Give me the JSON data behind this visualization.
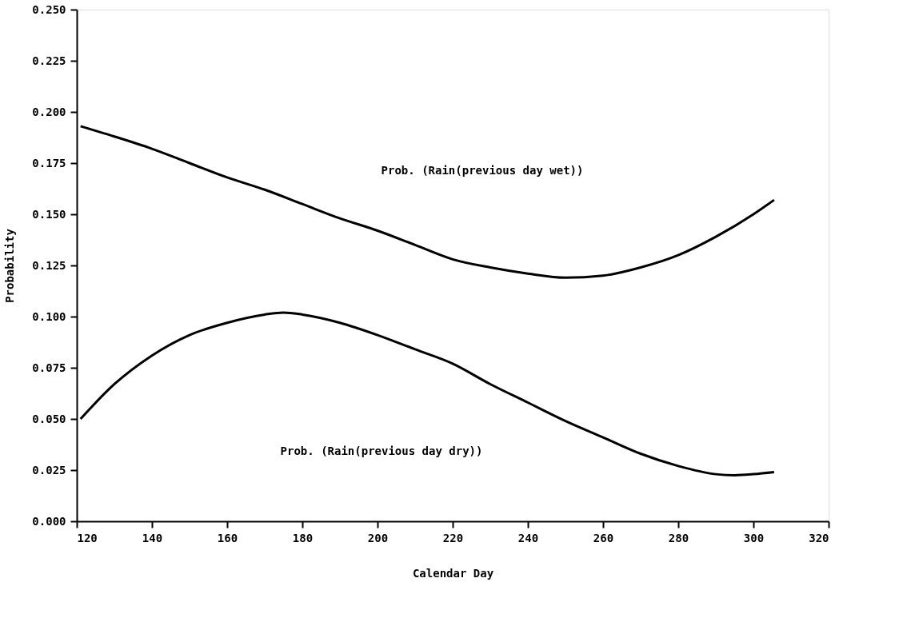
{
  "chart_data": {
    "type": "line",
    "xlabel": "Calendar Day",
    "ylabel": "Probability",
    "xlim": [
      120,
      320
    ],
    "xticks": [
      120,
      140,
      160,
      180,
      200,
      220,
      240,
      260,
      280,
      300,
      320
    ],
    "ylim": [
      0,
      0.25
    ],
    "yticks": [
      {
        "value": 0,
        "label": "0.000"
      },
      {
        "value": 0.025,
        "label": "0.025"
      },
      {
        "value": 0.05,
        "label": "0.050"
      },
      {
        "value": 0.075,
        "label": "0.075"
      },
      {
        "value": 0.1,
        "label": "0.100"
      },
      {
        "value": 0.125,
        "label": "0.125"
      },
      {
        "value": 0.15,
        "label": "0.150"
      },
      {
        "value": 0.175,
        "label": "0.175"
      },
      {
        "value": 0.2,
        "label": "0.200"
      },
      {
        "value": 0.225,
        "label": "0.225"
      },
      {
        "value": 0.25,
        "label": "0.250"
      }
    ],
    "marker": "none",
    "line_style": "solid",
    "series": [
      {
        "color": "#000000",
        "x": [
          121,
          130,
          140,
          150,
          160,
          170,
          180,
          190,
          200,
          210,
          220,
          230,
          240,
          250,
          260,
          270,
          280,
          290,
          300,
          305.5
        ],
        "values": [
          0.193,
          0.188,
          0.182,
          0.175,
          0.168,
          0.162,
          0.155,
          0.148,
          0.142,
          0.135,
          0.128,
          0.124,
          0.121,
          0.119,
          0.12,
          0.124,
          0.13,
          0.139,
          0.15,
          0.157
        ]
      },
      {
        "color": "#000000",
        "x": [
          121,
          130,
          140,
          150,
          160,
          170,
          175,
          180,
          190,
          200,
          210,
          220,
          230,
          240,
          250,
          260,
          270,
          280,
          290,
          295,
          300,
          305.5
        ],
        "values": [
          0.05,
          0.067,
          0.081,
          0.091,
          0.097,
          0.101,
          0.102,
          0.101,
          0.097,
          0.091,
          0.084,
          0.077,
          0.067,
          0.058,
          0.049,
          0.041,
          0.033,
          0.027,
          0.023,
          0.0225,
          0.023,
          0.024
        ]
      }
    ],
    "annotations": [
      "Prob.  (Rain(previous day wet))",
      "Prob.  (Rain(previous day dry))"
    ]
  }
}
